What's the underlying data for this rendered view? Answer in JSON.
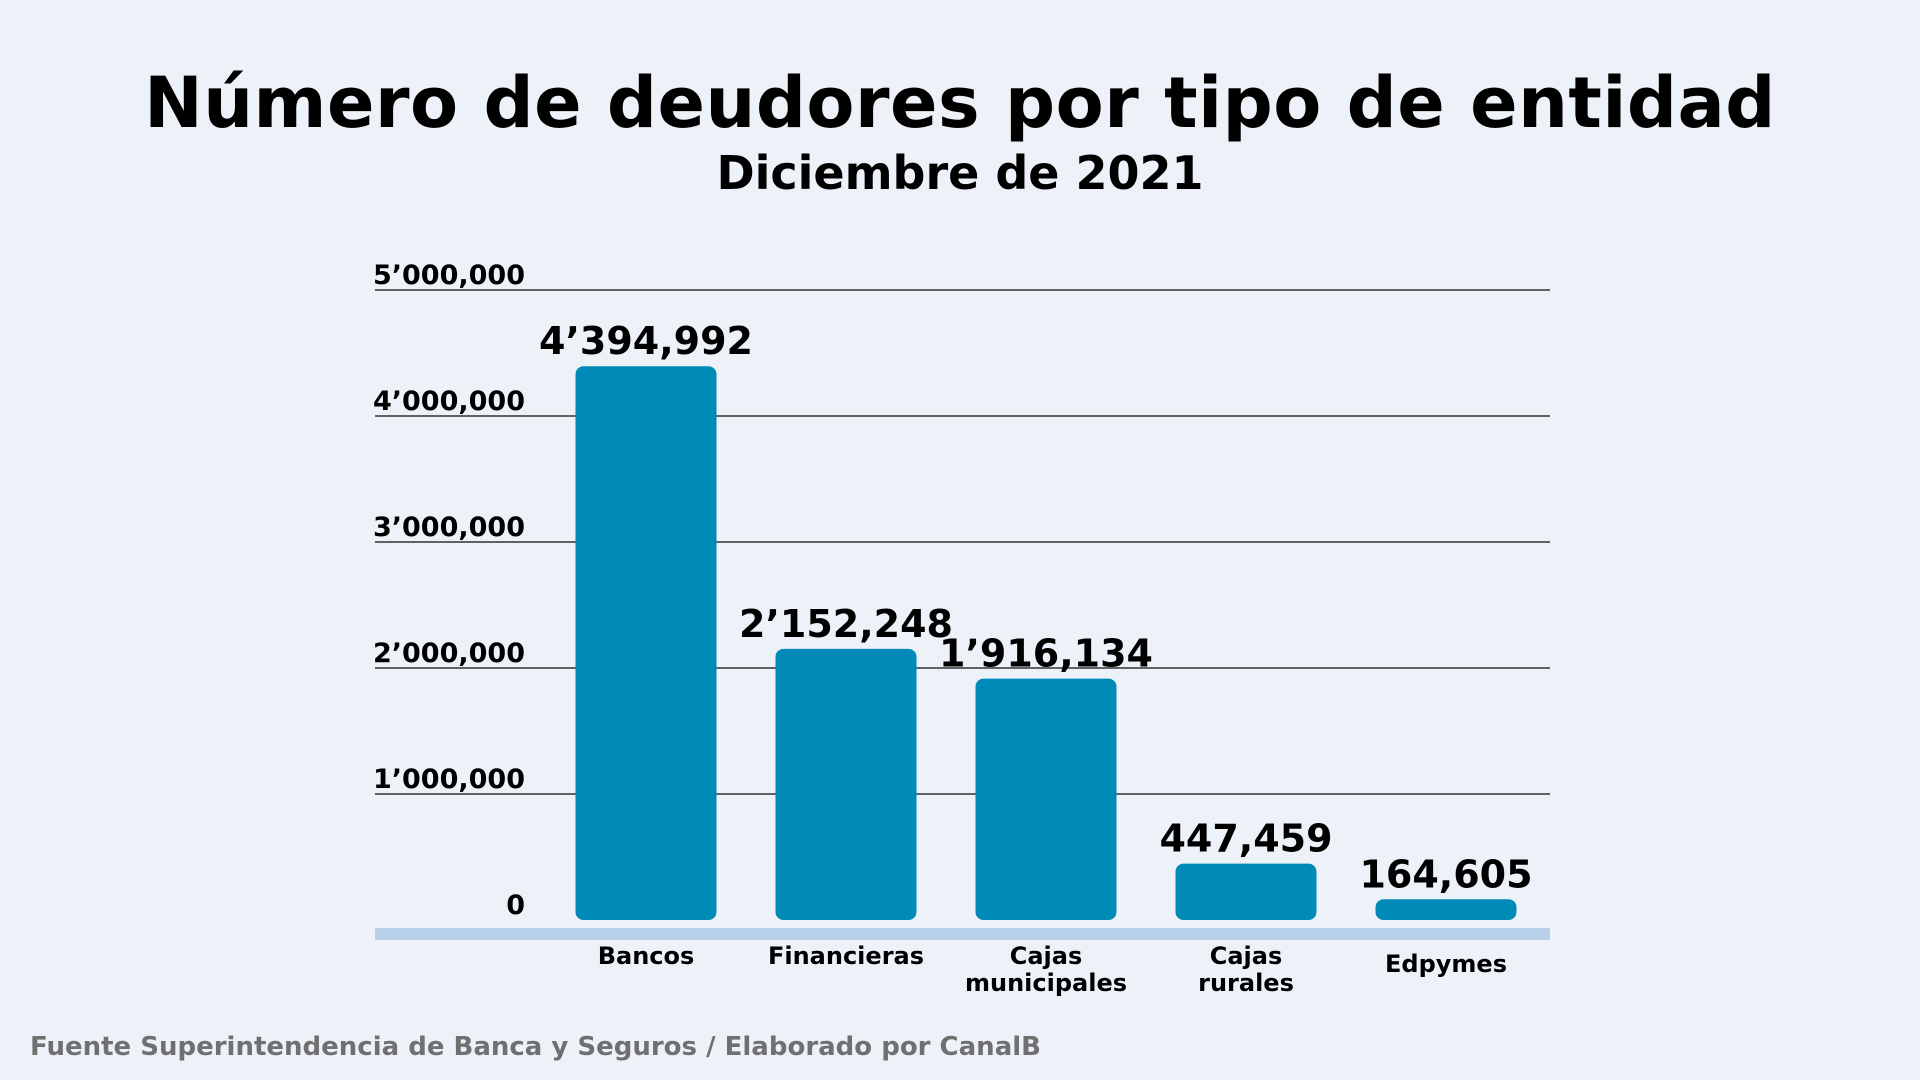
{
  "title": "Número de deudores por tipo de entidad",
  "subtitle": "Diciembre de 2021",
  "source": "Fuente Superintendencia de Banca y Seguros / Elaborado por CanalB",
  "colors": {
    "bar": "#008ab8",
    "baseline": "#b8cfea",
    "grid": "#333333",
    "background": "#edf2f9"
  },
  "chart_data": {
    "type": "bar",
    "categories": [
      [
        "Bancos"
      ],
      [
        "Financieras"
      ],
      [
        "Cajas",
        "municipales"
      ],
      [
        "Cajas",
        "rurales"
      ],
      [
        "Edpymes"
      ]
    ],
    "values": [
      4394992,
      2152248,
      1916134,
      447459,
      164605
    ],
    "value_labels": [
      "4’394,992",
      "2’152,248",
      "1’916,134",
      "447,459",
      "164,605"
    ],
    "ylim": [
      0,
      5000000
    ],
    "yticks": [
      0,
      1000000,
      2000000,
      3000000,
      4000000,
      5000000
    ],
    "ytick_labels": [
      "0",
      "1’000,000",
      "2’000,000",
      "3’000,000",
      "4’000,000",
      "5’000,000"
    ],
    "grid": true
  }
}
